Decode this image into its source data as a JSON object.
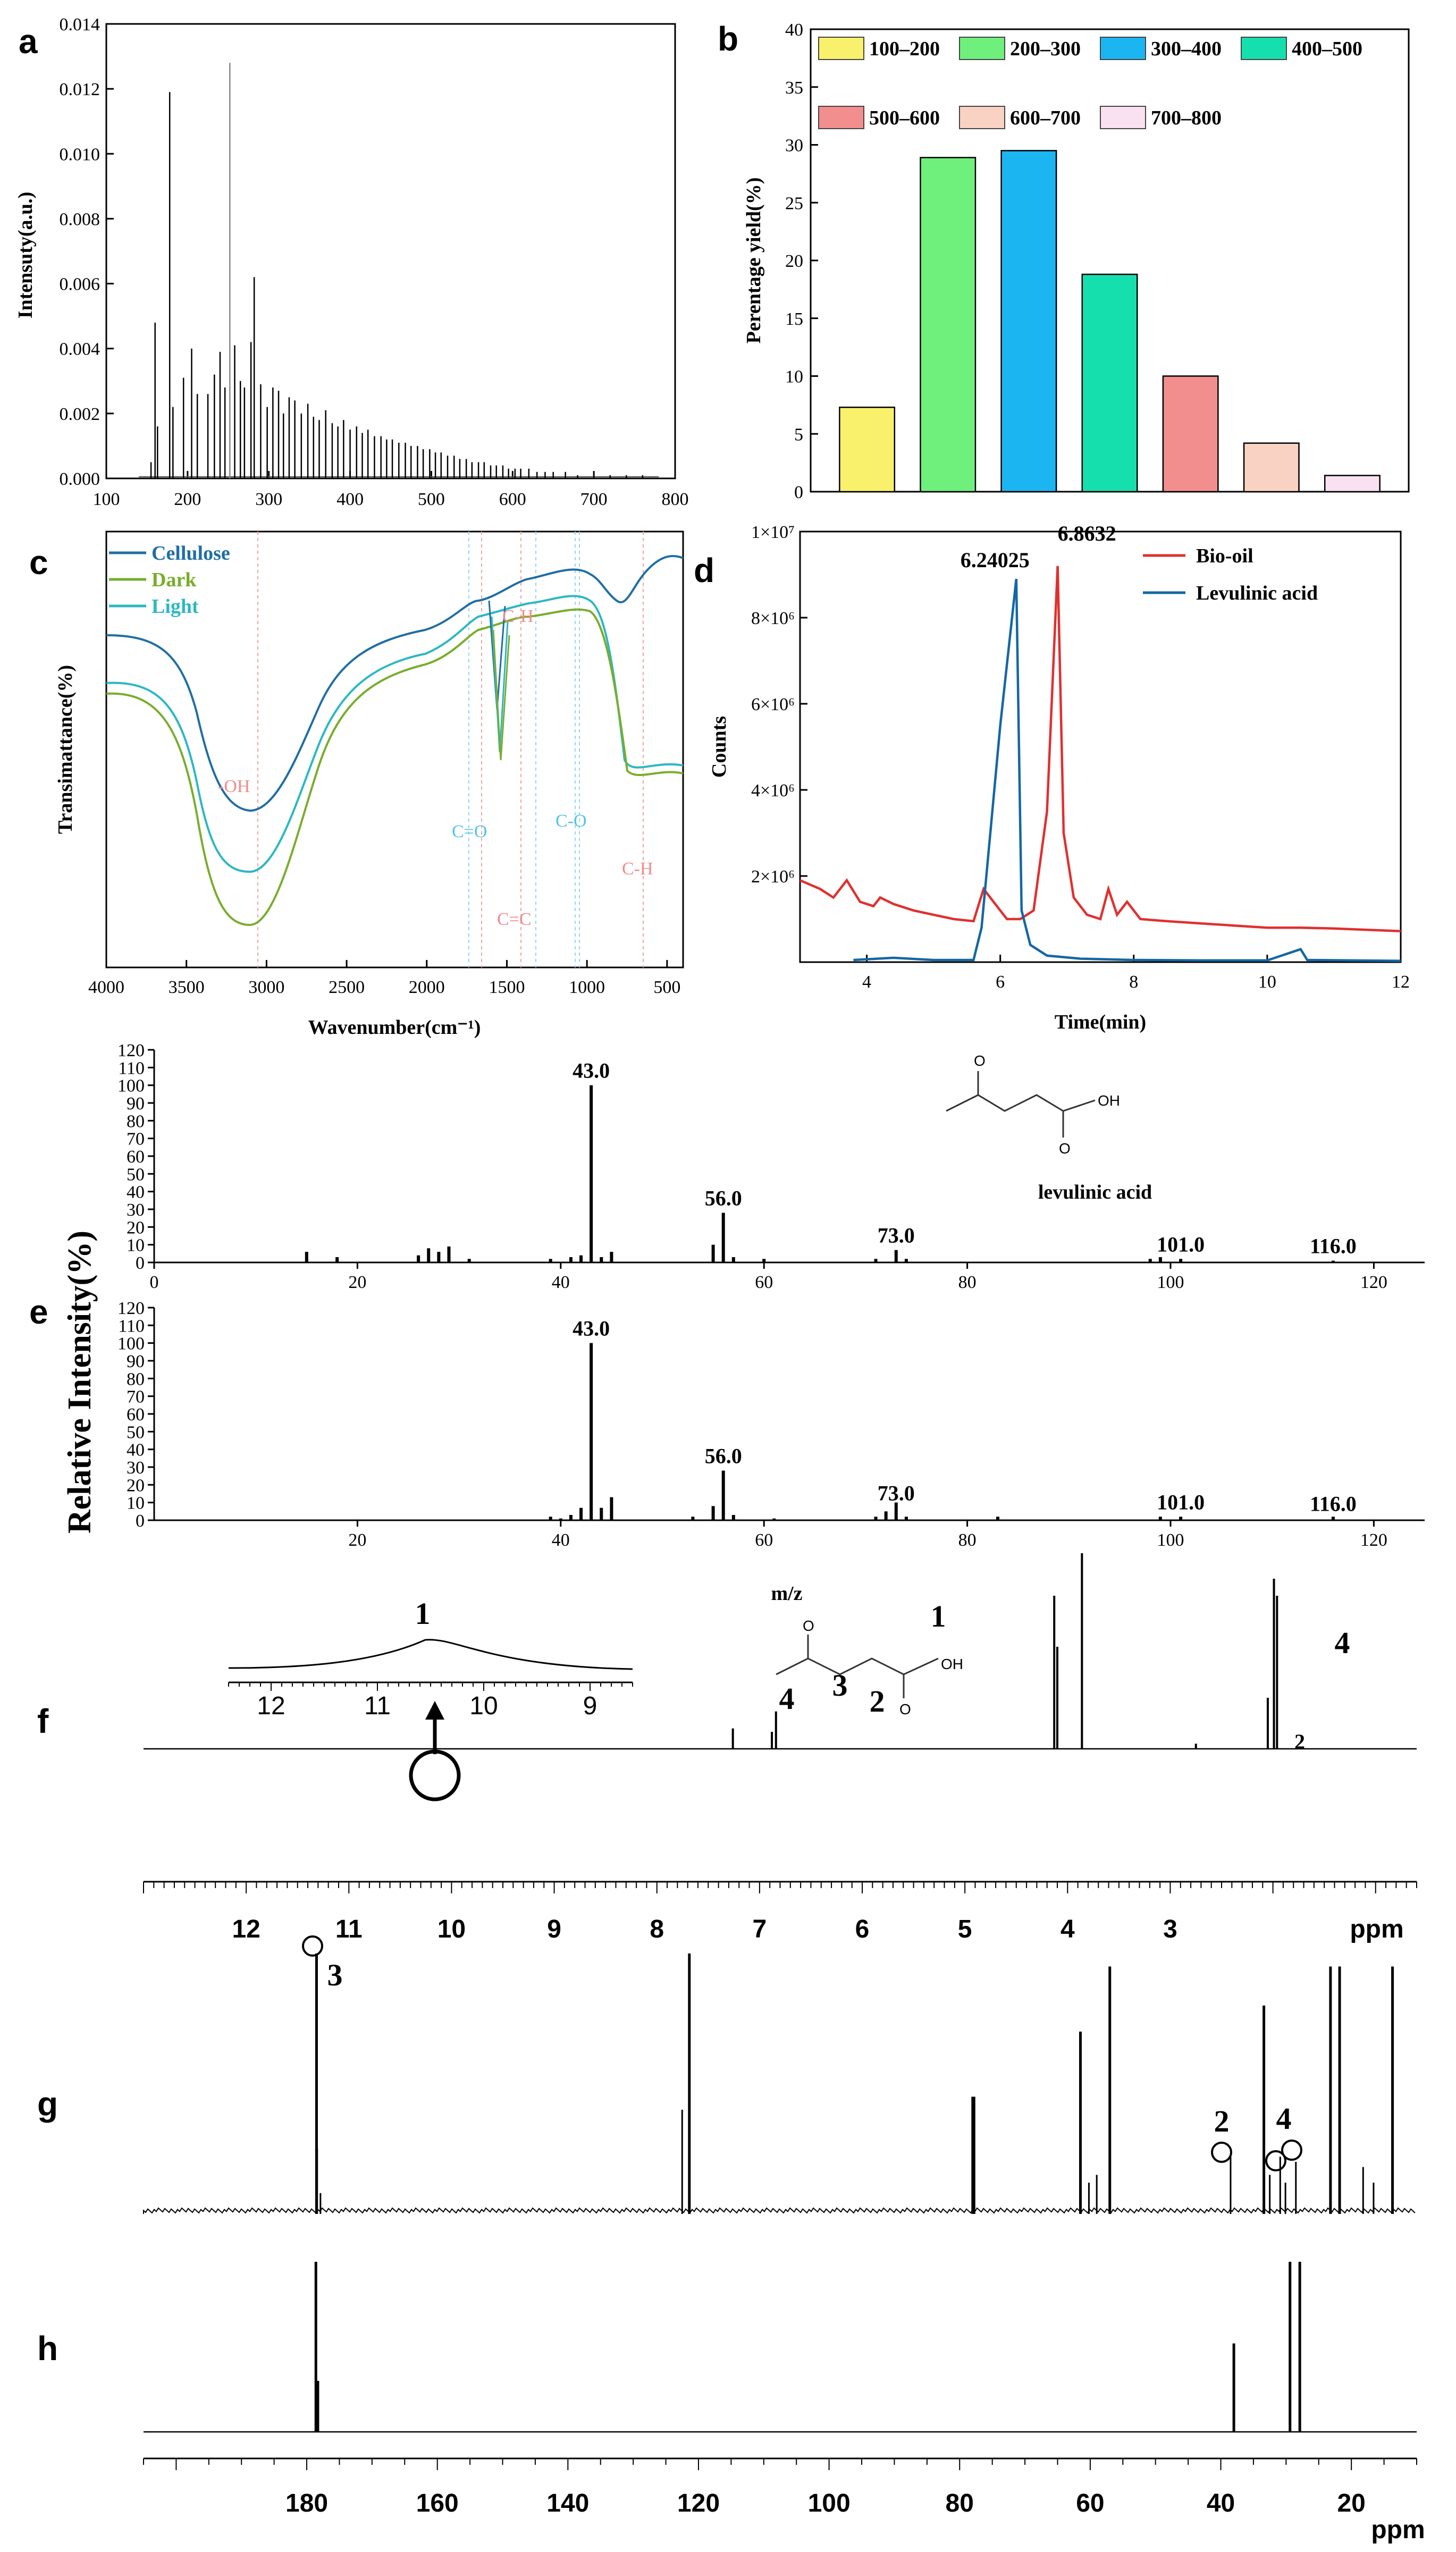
{
  "panels": {
    "a": "a",
    "b": "b",
    "c": "c",
    "d": "d",
    "e": "e",
    "f": "f",
    "g": "g",
    "h": "h"
  },
  "chart_data": [
    {
      "id": "a",
      "type": "bar",
      "title": "",
      "xlabel": "",
      "ylabel": "Intensuty(a.u.)",
      "xlim": [
        100,
        800
      ],
      "ylim": [
        0,
        0.014
      ],
      "xticks": [
        100,
        200,
        300,
        400,
        500,
        600,
        700,
        800
      ],
      "yticks": [
        "0.000",
        "0.002",
        "0.004",
        "0.006",
        "0.008",
        "0.010",
        "0.012",
        "0.014"
      ],
      "peaks": [
        [
          155,
          0.0005
        ],
        [
          160,
          0.0048
        ],
        [
          163,
          0.0016
        ],
        [
          178,
          0.0119
        ],
        [
          182,
          0.0022
        ],
        [
          195,
          0.0031
        ],
        [
          205,
          0.004
        ],
        [
          212,
          0.0026
        ],
        [
          225,
          0.0026
        ],
        [
          233,
          0.0032
        ],
        [
          240,
          0.0039
        ],
        [
          246,
          0.0028
        ],
        [
          252,
          0.0128
        ],
        [
          258,
          0.0041
        ],
        [
          265,
          0.003
        ],
        [
          270,
          0.0028
        ],
        [
          278,
          0.0042
        ],
        [
          282,
          0.0062
        ],
        [
          290,
          0.0029
        ],
        [
          298,
          0.0022
        ],
        [
          305,
          0.0028
        ],
        [
          312,
          0.0027
        ],
        [
          318,
          0.002
        ],
        [
          325,
          0.0025
        ],
        [
          332,
          0.0024
        ],
        [
          340,
          0.002
        ],
        [
          348,
          0.0023
        ],
        [
          355,
          0.0019
        ],
        [
          362,
          0.0018
        ],
        [
          370,
          0.0021
        ],
        [
          378,
          0.0017
        ],
        [
          385,
          0.0016
        ],
        [
          392,
          0.0018
        ],
        [
          400,
          0.0015
        ],
        [
          408,
          0.0016
        ],
        [
          415,
          0.0014
        ],
        [
          422,
          0.0015
        ],
        [
          430,
          0.0013
        ],
        [
          438,
          0.0013
        ],
        [
          445,
          0.0012
        ],
        [
          452,
          0.0012
        ],
        [
          460,
          0.0011
        ],
        [
          468,
          0.0011
        ],
        [
          475,
          0.001
        ],
        [
          483,
          0.001
        ],
        [
          490,
          0.0009
        ],
        [
          498,
          0.0009
        ],
        [
          505,
          0.0008
        ],
        [
          512,
          0.0008
        ],
        [
          520,
          0.0007
        ],
        [
          528,
          0.0007
        ],
        [
          535,
          0.0006
        ],
        [
          543,
          0.0006
        ],
        [
          550,
          0.0005
        ],
        [
          558,
          0.0005
        ],
        [
          565,
          0.0005
        ],
        [
          573,
          0.0004
        ],
        [
          580,
          0.0004
        ],
        [
          588,
          0.0004
        ],
        [
          595,
          0.0003
        ],
        [
          603,
          0.0003
        ],
        [
          610,
          0.0003
        ],
        [
          620,
          0.0003
        ],
        [
          630,
          0.0002
        ],
        [
          640,
          0.0002
        ],
        [
          650,
          0.0002
        ],
        [
          665,
          0.0002
        ],
        [
          680,
          0.0001
        ],
        [
          700,
          0.0001
        ],
        [
          720,
          0.0001
        ],
        [
          740,
          0.0001
        ],
        [
          760,
          0.0001
        ]
      ]
    },
    {
      "id": "b",
      "type": "bar",
      "ylabel": "Perentage yield(%)",
      "xlabel": "",
      "ylim": [
        0,
        40
      ],
      "yticks": [
        0,
        5,
        10,
        15,
        20,
        25,
        30,
        35,
        40
      ],
      "categories": [
        "100–200",
        "200–300",
        "300–400",
        "400–500",
        "500–600",
        "600–700",
        "700–800"
      ],
      "values": [
        7.3,
        28.9,
        29.5,
        18.8,
        10.0,
        4.2,
        1.4
      ],
      "colors": [
        "#f9f16b",
        "#6ff07c",
        "#1bb6f2",
        "#15e0ad",
        "#f28e8e",
        "#fad2c3",
        "#f9e1f2"
      ]
    },
    {
      "id": "c",
      "type": "line",
      "xlabel": "Wavenumber(cm⁻¹)",
      "ylabel": "Transimattance(%)",
      "xlim": [
        4000,
        400
      ],
      "xticks": [
        4000,
        3500,
        3000,
        2500,
        2000,
        1500,
        1000,
        500
      ],
      "legend": [
        "Cellulose",
        "Dark",
        "Light"
      ],
      "series_colors": [
        "#1f6ea3",
        "#79ad2c",
        "#2cb8c2"
      ],
      "annotations": [
        "-OH",
        "C-H",
        "C=O",
        "C=C",
        "C-O",
        "C-H"
      ]
    },
    {
      "id": "d",
      "type": "line",
      "xlabel": "Time(min)",
      "ylabel": "Counts",
      "xlim": [
        3,
        12
      ],
      "ylim": [
        0,
        10000000
      ],
      "xticks": [
        4,
        6,
        8,
        10,
        12
      ],
      "yticks": [
        "2×10⁶",
        "4×10⁶",
        "6×10⁶",
        "8×10⁶",
        "1×10⁷"
      ],
      "series": [
        {
          "name": "Bio-oil",
          "color": "#e0302f",
          "peak_time": "6.8632",
          "points": [
            [
              3.0,
              1900000.0
            ],
            [
              3.3,
              1700000.0
            ],
            [
              3.5,
              1500000.0
            ],
            [
              3.7,
              1900000.0
            ],
            [
              3.9,
              1400000.0
            ],
            [
              4.1,
              1300000.0
            ],
            [
              4.2,
              1500000.0
            ],
            [
              4.4,
              1350000.0
            ],
            [
              4.7,
              1200000.0
            ],
            [
              5.0,
              1100000.0
            ],
            [
              5.3,
              1000000.0
            ],
            [
              5.6,
              950000.0
            ],
            [
              5.75,
              1700000.0
            ],
            [
              5.9,
              1400000.0
            ],
            [
              6.1,
              1000000.0
            ],
            [
              6.3,
              1000000.0
            ],
            [
              6.5,
              1200000.0
            ],
            [
              6.7,
              3500000.0
            ],
            [
              6.86,
              9200000.0
            ],
            [
              6.95,
              3000000.0
            ],
            [
              7.1,
              1500000.0
            ],
            [
              7.3,
              1100000.0
            ],
            [
              7.5,
              1000000.0
            ],
            [
              7.62,
              1700000.0
            ],
            [
              7.75,
              1100000.0
            ],
            [
              7.9,
              1400000.0
            ],
            [
              8.1,
              1000000.0
            ],
            [
              8.5,
              950000.0
            ],
            [
              9.0,
              900000.0
            ],
            [
              9.5,
              850000.0
            ],
            [
              10.0,
              800000.0
            ],
            [
              10.5,
              800000.0
            ],
            [
              11.0,
              780000.0
            ],
            [
              11.5,
              750000.0
            ],
            [
              12.0,
              720000.0
            ]
          ]
        },
        {
          "name": "Levulinic acid",
          "color": "#1467a3",
          "peak_time": "6.24025",
          "points": [
            [
              3.8,
              50000.0
            ],
            [
              4.4,
              100000.0
            ],
            [
              5.0,
              50000.0
            ],
            [
              5.6,
              50000.0
            ],
            [
              5.72,
              800000.0
            ],
            [
              6.0,
              5500000.0
            ],
            [
              6.24,
              8900000.0
            ],
            [
              6.32,
              1200000.0
            ],
            [
              6.45,
              400000.0
            ],
            [
              6.7,
              150000.0
            ],
            [
              7.2,
              80000.0
            ],
            [
              8.0,
              50000.0
            ],
            [
              9.0,
              40000.0
            ],
            [
              10.0,
              40000.0
            ],
            [
              10.5,
              300000.0
            ],
            [
              10.6,
              50000.0
            ],
            [
              12.0,
              30000.0
            ]
          ]
        }
      ]
    },
    {
      "id": "e",
      "type": "bar",
      "ylabel": "Relative Intensity(%)",
      "xlabel": "m/z",
      "xlim": [
        0,
        125
      ],
      "ylim": [
        0,
        120
      ],
      "xticks": [
        0,
        20,
        40,
        60,
        80,
        100,
        120
      ],
      "yticks": [
        0,
        10,
        20,
        30,
        40,
        50,
        60,
        70,
        80,
        90,
        100,
        110,
        120
      ],
      "compound": "levulinic acid",
      "structure_label": "OH",
      "top": {
        "peaks": [
          [
            15,
            6
          ],
          [
            18,
            3
          ],
          [
            26,
            4
          ],
          [
            27,
            8
          ],
          [
            28,
            6
          ],
          [
            29,
            9
          ],
          [
            31,
            2
          ],
          [
            39,
            2
          ],
          [
            41,
            3
          ],
          [
            42,
            4
          ],
          [
            43,
            100
          ],
          [
            44,
            3
          ],
          [
            45,
            6
          ],
          [
            55,
            10
          ],
          [
            56,
            28
          ],
          [
            57,
            3
          ],
          [
            60,
            2
          ],
          [
            71,
            2
          ],
          [
            73,
            7
          ],
          [
            74,
            2
          ],
          [
            98,
            2
          ],
          [
            99,
            3
          ],
          [
            101,
            2
          ],
          [
            116,
            1
          ]
        ],
        "labels": [
          "43.0",
          "56.0",
          "73.0",
          "101.0",
          "116.0"
        ]
      },
      "bottom": {
        "peaks": [
          [
            39,
            2
          ],
          [
            40,
            1
          ],
          [
            41,
            3
          ],
          [
            42,
            7
          ],
          [
            43,
            100
          ],
          [
            44,
            7
          ],
          [
            45,
            13
          ],
          [
            53,
            2
          ],
          [
            55,
            8
          ],
          [
            56,
            28
          ],
          [
            57,
            3
          ],
          [
            61,
            1
          ],
          [
            71,
            2
          ],
          [
            72,
            5
          ],
          [
            73,
            10
          ],
          [
            74,
            2
          ],
          [
            83,
            2
          ],
          [
            99,
            2
          ],
          [
            101,
            2
          ],
          [
            116,
            2
          ]
        ],
        "labels": [
          "43.0",
          "56.0",
          "73.0",
          "101.0",
          "116.0"
        ]
      }
    },
    {
      "id": "f",
      "type": "line",
      "xlabel": "ppm",
      "xlim": [
        13,
        0.6
      ],
      "xticks": [
        12,
        11,
        10,
        9,
        8,
        7,
        6,
        5,
        4,
        3
      ],
      "inset_xticks": [
        12,
        11,
        10,
        9
      ],
      "structure_numbers": [
        "1",
        "2",
        "3",
        "4"
      ],
      "structure_label": "OH",
      "peak_labels": [
        "1",
        "2",
        "4"
      ],
      "peaks": [
        [
          7.26,
          0.12
        ],
        [
          6.88,
          0.1
        ],
        [
          6.84,
          0.22
        ],
        [
          4.13,
          0.9
        ],
        [
          4.1,
          0.6
        ],
        [
          3.86,
          1.15
        ],
        [
          2.75,
          0.03
        ],
        [
          2.05,
          0.3
        ],
        [
          1.99,
          1.0
        ],
        [
          1.96,
          0.9
        ]
      ]
    },
    {
      "id": "gh",
      "type": "line",
      "xlabel": "ppm",
      "xlim": [
        205,
        10
      ],
      "xticks": [
        180,
        160,
        140,
        120,
        100,
        80,
        60,
        40,
        20
      ],
      "g_peak_labels": [
        "3",
        "2",
        "4"
      ],
      "g_peaks": [
        [
          178.5,
          1.0
        ],
        [
          178.4,
          0.25
        ],
        [
          177.9,
          0.08
        ],
        [
          122.5,
          0.4
        ],
        [
          121.4,
          1.0
        ],
        [
          78.0,
          0.45
        ],
        [
          77.8,
          0.45
        ],
        [
          61.5,
          0.7
        ],
        [
          60.2,
          0.12
        ],
        [
          59.0,
          0.15
        ],
        [
          57.0,
          0.95
        ],
        [
          38.5,
          0.22
        ],
        [
          33.4,
          0.8
        ],
        [
          32.5,
          0.15
        ],
        [
          30.9,
          0.22
        ],
        [
          30.1,
          0.12
        ],
        [
          28.5,
          0.2
        ],
        [
          23.2,
          0.95
        ],
        [
          21.8,
          0.95
        ],
        [
          18.2,
          0.18
        ],
        [
          16.6,
          0.12
        ],
        [
          13.7,
          0.95
        ]
      ],
      "h_peaks": [
        [
          178.6,
          1.0
        ],
        [
          178.3,
          0.3
        ],
        [
          38.0,
          0.52
        ],
        [
          29.4,
          1.0
        ],
        [
          27.9,
          1.0
        ]
      ]
    }
  ]
}
